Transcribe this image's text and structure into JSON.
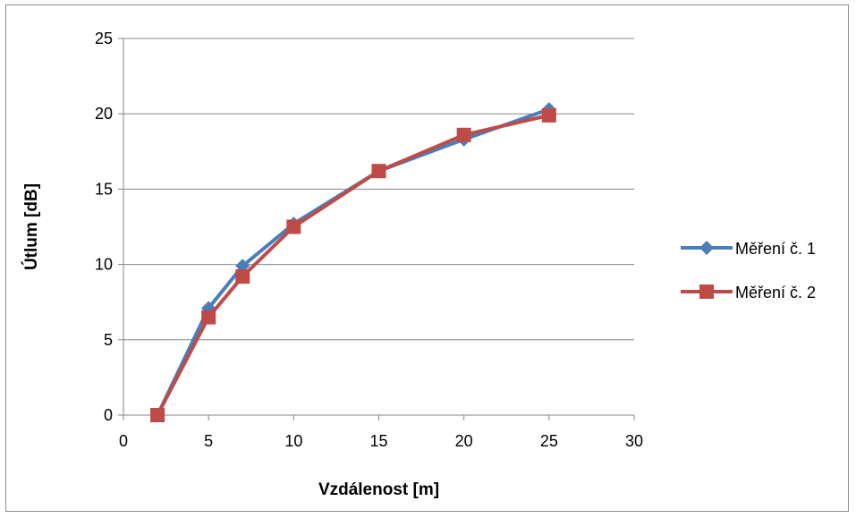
{
  "chart_data": {
    "type": "line",
    "xlabel": "Vzdálenost [m]",
    "ylabel": "Útlum [dB]",
    "xlim": [
      0,
      30
    ],
    "ylim": [
      0,
      25
    ],
    "xticks": [
      "0",
      "5",
      "10",
      "15",
      "20",
      "25",
      "30"
    ],
    "yticks": [
      "0",
      "5",
      "10",
      "15",
      "20",
      "25"
    ],
    "grid": "horizontal",
    "legend_position": "right",
    "series": [
      {
        "name": "Měření č. 1",
        "color": "#4a7ebb",
        "marker": "diamond",
        "x": [
          2,
          5,
          7,
          10,
          15,
          20,
          25
        ],
        "y": [
          0,
          7.1,
          9.9,
          12.7,
          16.2,
          18.3,
          20.3
        ]
      },
      {
        "name": "Měření č. 2",
        "color": "#be4b48",
        "marker": "square",
        "x": [
          2,
          5,
          7,
          10,
          15,
          20,
          25
        ],
        "y": [
          0,
          6.5,
          9.2,
          12.5,
          16.2,
          18.6,
          19.9
        ]
      }
    ]
  }
}
